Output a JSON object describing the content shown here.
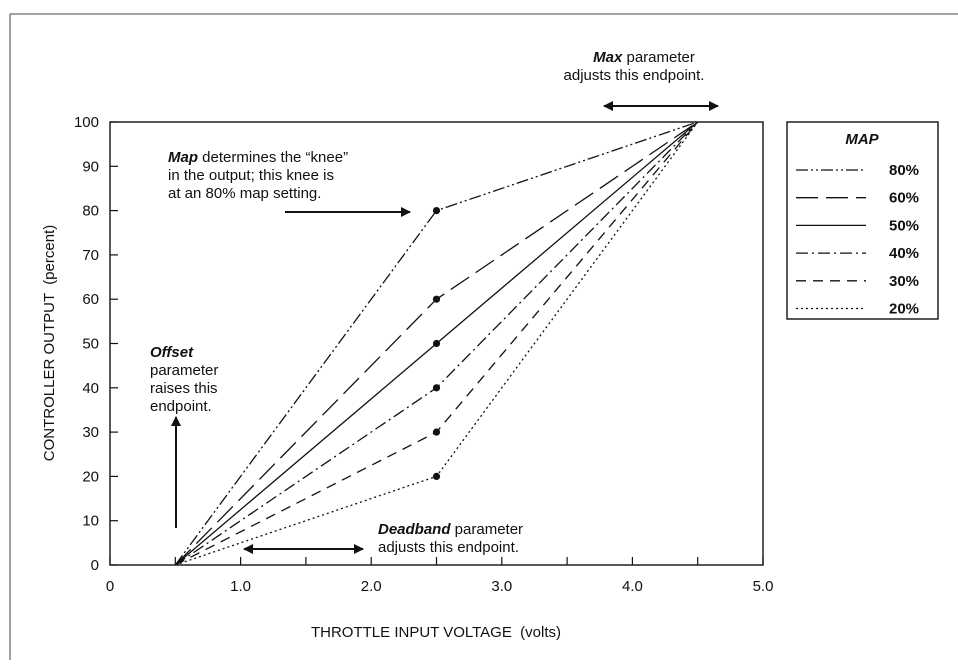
{
  "chart_data": {
    "type": "line",
    "x_axis": {
      "label": "THROTTLE INPUT VOLTAGE  (volts)",
      "range": [
        0,
        5.0
      ],
      "ticks": [
        0,
        0.5,
        1.0,
        1.5,
        2.0,
        2.5,
        3.0,
        3.5,
        4.0,
        4.5,
        5.0
      ],
      "tick_labels": [
        {
          "value": 0,
          "text": "0"
        },
        {
          "value": 1.0,
          "text": "1.0"
        },
        {
          "value": 2.0,
          "text": "2.0"
        },
        {
          "value": 3.0,
          "text": "3.0"
        },
        {
          "value": 4.0,
          "text": "4.0"
        },
        {
          "value": 5.0,
          "text": "5.0"
        }
      ]
    },
    "y_axis": {
      "label": "CONTROLLER OUTPUT  (percent)",
      "range": [
        0,
        100
      ],
      "ticks": [
        0,
        10,
        20,
        30,
        40,
        50,
        60,
        70,
        80,
        90,
        100
      ],
      "tick_labels": [
        "0",
        "10",
        "20",
        "30",
        "40",
        "50",
        "60",
        "70",
        "80",
        "90",
        "100"
      ]
    },
    "grid": false,
    "legend": {
      "title": "MAP",
      "position": "right"
    },
    "series": [
      {
        "name": "80%",
        "style": "dash-dot-dot",
        "x": [
          0.5,
          2.5,
          4.5
        ],
        "y": [
          0,
          80,
          100
        ]
      },
      {
        "name": "60%",
        "style": "long-dash",
        "x": [
          0.5,
          2.5,
          4.5
        ],
        "y": [
          0,
          60,
          100
        ]
      },
      {
        "name": "50%",
        "style": "solid",
        "x": [
          0.5,
          2.5,
          4.5
        ],
        "y": [
          0,
          50,
          100
        ]
      },
      {
        "name": "40%",
        "style": "dash-dot",
        "x": [
          0.5,
          2.5,
          4.5
        ],
        "y": [
          0,
          40,
          100
        ]
      },
      {
        "name": "30%",
        "style": "dash",
        "x": [
          0.5,
          2.5,
          4.5
        ],
        "y": [
          0,
          30,
          100
        ]
      },
      {
        "name": "20%",
        "style": "dotted",
        "x": [
          0.5,
          2.5,
          4.5
        ],
        "y": [
          0,
          20,
          100
        ]
      }
    ],
    "annotations": {
      "max": {
        "bold": "Max",
        "rest": " parameter",
        "line2": "adjusts this endpoint."
      },
      "map": {
        "bold": "Map",
        "rest": " determines the “knee”",
        "line2": "in the output; this knee is",
        "line3": "at an 80% map setting."
      },
      "offset": {
        "bold": "Offset",
        "line2": "parameter",
        "line3": "raises this",
        "line4": "endpoint."
      },
      "deadband": {
        "bold": "Deadband",
        "rest": " parameter",
        "line2": "adjusts this endpoint."
      }
    }
  }
}
